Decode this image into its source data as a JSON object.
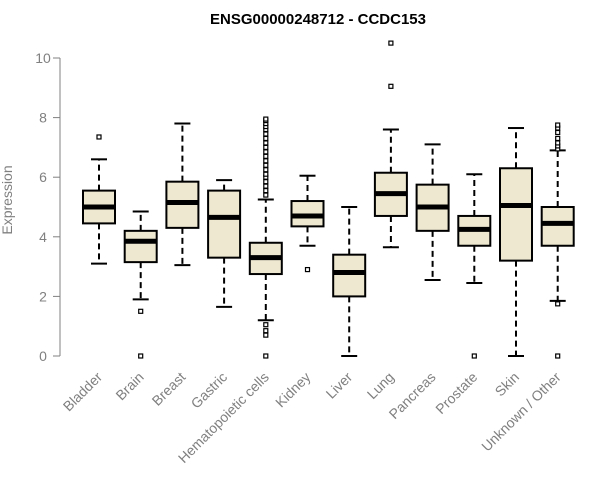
{
  "colors": {
    "box_fill": "#eee8d0",
    "box_stroke": "#000000",
    "axis": "#808080",
    "text": "#808080",
    "title": "#000000"
  },
  "chart_data": {
    "type": "boxplot",
    "title": "ENSG00000248712 - CCDC153",
    "xlabel": "",
    "ylabel": "Expression",
    "ylim": [
      0,
      10.5
    ],
    "yticks": [
      0,
      2,
      4,
      6,
      8,
      10
    ],
    "grid": false,
    "legend": "none",
    "categories": [
      "Bladder",
      "Brain",
      "Breast",
      "Gastric",
      "Hematopoietic cells",
      "Kidney",
      "Liver",
      "Lung",
      "Pancreas",
      "Prostate",
      "Skin",
      "Unknown / Other"
    ],
    "boxes": [
      {
        "whisker_low": 3.1,
        "q1": 4.45,
        "median": 5.0,
        "q3": 5.55,
        "whisker_high": 6.6,
        "outliers": [
          7.35
        ]
      },
      {
        "whisker_low": 1.9,
        "q1": 3.15,
        "median": 3.85,
        "q3": 4.2,
        "whisker_high": 4.85,
        "outliers": [
          1.5,
          0.0
        ]
      },
      {
        "whisker_low": 3.05,
        "q1": 4.3,
        "median": 5.15,
        "q3": 5.85,
        "whisker_high": 7.8,
        "outliers": []
      },
      {
        "whisker_low": 1.65,
        "q1": 3.3,
        "median": 4.65,
        "q3": 5.55,
        "whisker_high": 5.9,
        "outliers": []
      },
      {
        "whisker_low": 1.2,
        "q1": 2.75,
        "median": 3.3,
        "q3": 3.8,
        "whisker_high": 5.25,
        "outliers": [
          1.05,
          0.85,
          0.7,
          0.0,
          5.4,
          5.55,
          5.7,
          5.85,
          6.0,
          6.1,
          6.25,
          6.4,
          6.55,
          6.7,
          6.85,
          7.0,
          7.15,
          7.3,
          7.45,
          7.6,
          7.7,
          7.8,
          7.9,
          7.95
        ]
      },
      {
        "whisker_low": 3.7,
        "q1": 4.35,
        "median": 4.7,
        "q3": 5.2,
        "whisker_high": 6.05,
        "outliers": [
          2.9
        ]
      },
      {
        "whisker_low": 0.0,
        "q1": 2.0,
        "median": 2.8,
        "q3": 3.4,
        "whisker_high": 5.0,
        "outliers": []
      },
      {
        "whisker_low": 3.65,
        "q1": 4.7,
        "median": 5.45,
        "q3": 6.15,
        "whisker_high": 7.6,
        "outliers": [
          9.05,
          10.5
        ]
      },
      {
        "whisker_low": 2.55,
        "q1": 4.2,
        "median": 5.0,
        "q3": 5.75,
        "whisker_high": 7.1,
        "outliers": []
      },
      {
        "whisker_low": 2.45,
        "q1": 3.7,
        "median": 4.25,
        "q3": 4.7,
        "whisker_high": 6.1,
        "outliers": [
          0.0
        ]
      },
      {
        "whisker_low": 0.0,
        "q1": 3.2,
        "median": 5.05,
        "q3": 6.3,
        "whisker_high": 7.65,
        "outliers": []
      },
      {
        "whisker_low": 1.85,
        "q1": 3.7,
        "median": 4.45,
        "q3": 5.0,
        "whisker_high": 6.9,
        "outliers": [
          1.75,
          0.0,
          6.95,
          7.05,
          7.15,
          7.3,
          7.5,
          7.65,
          7.75
        ]
      }
    ]
  }
}
